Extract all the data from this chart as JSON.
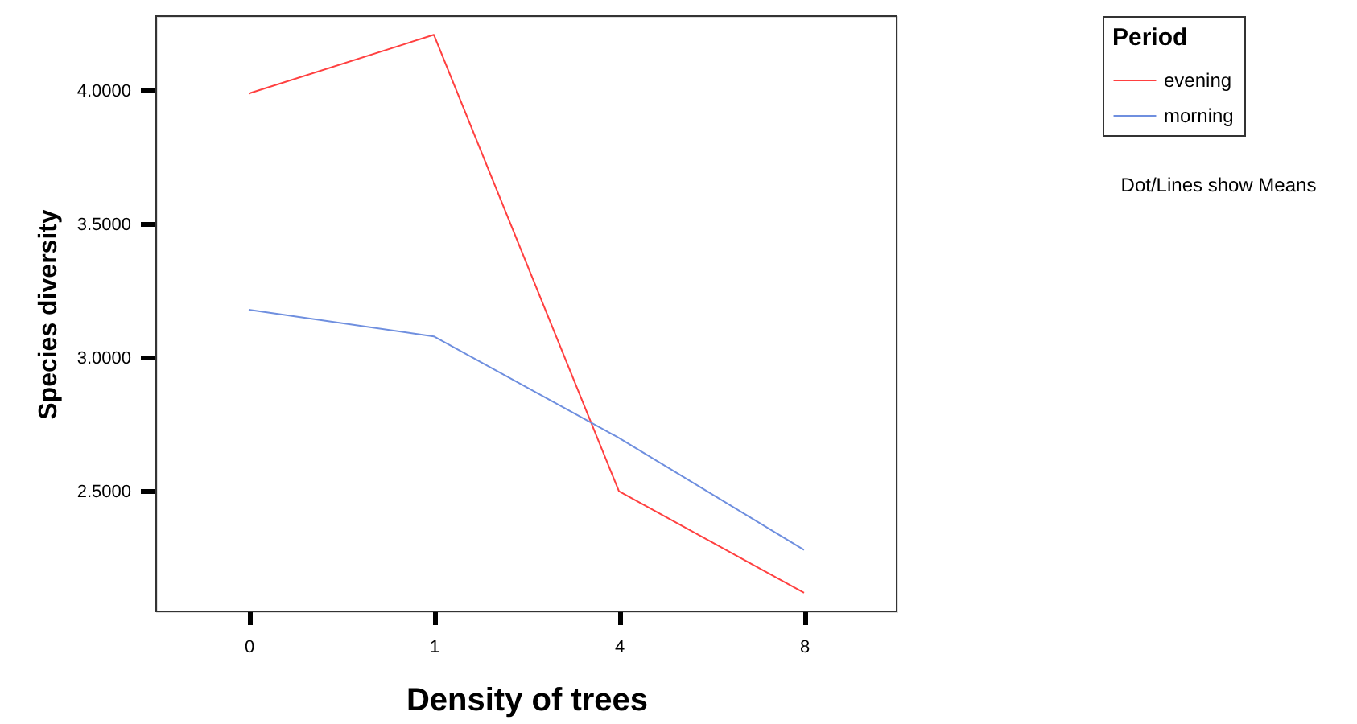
{
  "chart_data": {
    "type": "line",
    "xlabel": "Density of trees",
    "ylabel": "Species diversity",
    "legend_title": "Period",
    "categories": [
      "0",
      "1",
      "4",
      "8"
    ],
    "series": [
      {
        "name": "evening",
        "color": "#ff4040",
        "values": [
          3.99,
          4.21,
          2.5,
          2.12
        ]
      },
      {
        "name": "morning",
        "color": "#6f8fdf",
        "values": [
          3.18,
          3.08,
          2.7,
          2.28
        ]
      }
    ],
    "ylim": [
      2.05,
      4.28
    ],
    "yticks": [
      {
        "value": 2.5,
        "label": "2.5000"
      },
      {
        "value": 3.0,
        "label": "3.0000"
      },
      {
        "value": 3.5,
        "label": "3.5000"
      },
      {
        "value": 4.0,
        "label": "4.0000"
      }
    ],
    "grid": false,
    "legend": "top right",
    "marker": "none",
    "line_style": "solid",
    "annotations": [
      "Dot/Lines show Means"
    ]
  }
}
